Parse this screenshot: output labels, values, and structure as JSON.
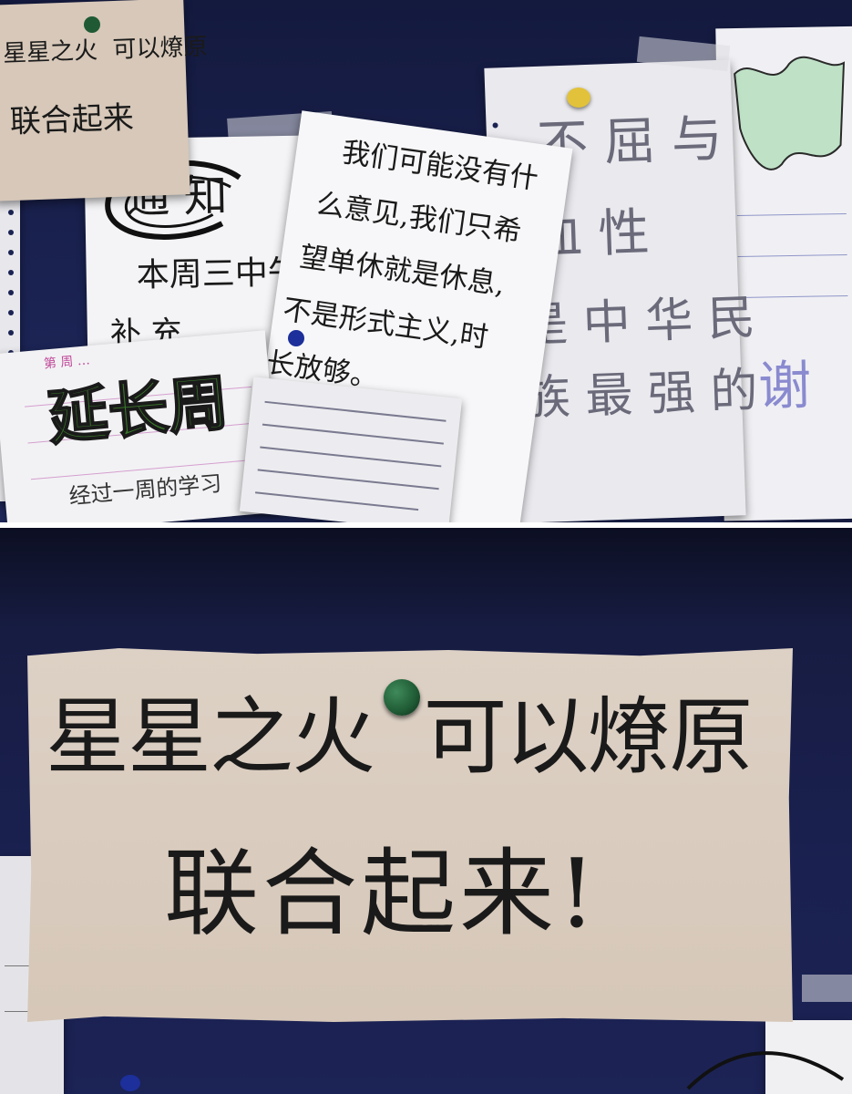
{
  "top_photo": {
    "corner_note": {
      "line1": "星星之火  可以燎原",
      "line2": "联合起来"
    },
    "notice": {
      "title": "通 知",
      "line1": "本周三中午",
      "line2": "补 充 …"
    },
    "slanted_note": {
      "line1": "我们可能没有什",
      "line2": "么意见,我们只希",
      "line3": "望单休就是休息,",
      "line4": "不是形式主义,时",
      "line5": "长放够。"
    },
    "extended_week": {
      "header": "第 周 …",
      "title": "延长周",
      "subtitle": "经过一周的学习"
    },
    "right_sheet": {
      "line1": "不 屈 与",
      "line2": "血 性",
      "line3": "是 中 华 民",
      "line4": "族 最 强 的"
    },
    "far_right": {
      "line1": "谢"
    }
  },
  "bottom_photo": {
    "big_note": {
      "line1": "星星之火  可以燎原",
      "line2": "联合起来!"
    }
  },
  "colors": {
    "board": "#1b2353",
    "kraft": "#d9cbbd",
    "pin_green": "#1f5a34",
    "pin_yellow": "#e2c23a",
    "pin_blue": "#1c2f9a"
  }
}
